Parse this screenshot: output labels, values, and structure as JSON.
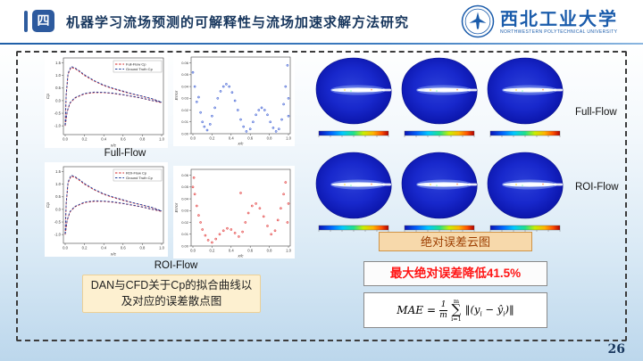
{
  "header": {
    "badge": "四",
    "title": "机器学习流场预测的可解释性与流场加速求解方法研究",
    "logo_cn": "西北工业大学",
    "logo_en": "NORTHWESTERN POLYTECHNICAL UNIVERSITY"
  },
  "page_number": "26",
  "left_panel": {
    "full_flow_label": "Full-Flow",
    "roi_flow_label": "ROI-Flow",
    "caption": "DAN与CFD关于Cp的拟合曲线以及对应的误差散点图"
  },
  "right_panel": {
    "full_flow_label": "Full-Flow",
    "roi_flow_label": "ROI-Flow",
    "error_cloud_label": "绝对误差云图",
    "improvement_text": "最大绝对误差降低41.5%",
    "formula": {
      "lhs": "MAE",
      "eq": "=",
      "num": "1",
      "den": "m",
      "sigma": "∑",
      "sup": "m",
      "sub": "i=1",
      "open": "‖(",
      "y1": "y",
      "i1": "i",
      "minus": "−",
      "y2": "ŷ",
      "i2": "i",
      "close": ")‖"
    }
  },
  "chart_data": {
    "cp_full": {
      "type": "line",
      "xlabel": "x/c",
      "ylabel": "Cp",
      "x_ticks": [
        0,
        0.2,
        0.4,
        0.6,
        0.8,
        1
      ],
      "y_ticks": [
        1.5,
        1.0,
        0.5,
        0.0,
        -0.5,
        -1.0
      ],
      "series": [
        {
          "name": "Full-Flow Cp",
          "color": "#d02020",
          "upper": [
            [
              0,
              -1.0
            ],
            [
              0.01,
              0.2
            ],
            [
              0.03,
              1.05
            ],
            [
              0.06,
              1.32
            ],
            [
              0.1,
              1.28
            ],
            [
              0.15,
              1.15
            ],
            [
              0.2,
              1.0
            ],
            [
              0.3,
              0.78
            ],
            [
              0.4,
              0.6
            ],
            [
              0.5,
              0.47
            ],
            [
              0.6,
              0.36
            ],
            [
              0.7,
              0.26
            ],
            [
              0.8,
              0.17
            ],
            [
              0.9,
              0.07
            ],
            [
              1,
              -0.08
            ]
          ],
          "lower": [
            [
              0,
              -1.0
            ],
            [
              0.02,
              -0.45
            ],
            [
              0.05,
              -0.1
            ],
            [
              0.1,
              0.1
            ],
            [
              0.2,
              0.27
            ],
            [
              0.3,
              0.32
            ],
            [
              0.4,
              0.32
            ],
            [
              0.5,
              0.28
            ],
            [
              0.6,
              0.23
            ],
            [
              0.7,
              0.16
            ],
            [
              0.8,
              0.09
            ],
            [
              0.9,
              0.0
            ],
            [
              1,
              -0.08
            ]
          ]
        },
        {
          "name": "Ground Truth Cp",
          "color": "#1f3d99",
          "upper": [
            [
              0,
              -0.97
            ],
            [
              0.01,
              0.25
            ],
            [
              0.03,
              1.09
            ],
            [
              0.06,
              1.36
            ],
            [
              0.1,
              1.31
            ],
            [
              0.15,
              1.18
            ],
            [
              0.2,
              1.03
            ],
            [
              0.3,
              0.8
            ],
            [
              0.4,
              0.62
            ],
            [
              0.5,
              0.49
            ],
            [
              0.6,
              0.38
            ],
            [
              0.7,
              0.27
            ],
            [
              0.8,
              0.18
            ],
            [
              0.9,
              0.08
            ],
            [
              1,
              -0.06
            ]
          ],
          "lower": [
            [
              0,
              -0.97
            ],
            [
              0.02,
              -0.42
            ],
            [
              0.05,
              -0.08
            ],
            [
              0.1,
              0.12
            ],
            [
              0.2,
              0.29
            ],
            [
              0.3,
              0.34
            ],
            [
              0.4,
              0.33
            ],
            [
              0.5,
              0.3
            ],
            [
              0.6,
              0.24
            ],
            [
              0.7,
              0.17
            ],
            [
              0.8,
              0.1
            ],
            [
              0.9,
              0.01
            ],
            [
              1,
              -0.06
            ]
          ]
        }
      ]
    },
    "err_full": {
      "type": "scatter",
      "xlabel": "x/c",
      "ylabel": "Error",
      "color": "#2a4fd0",
      "x_ticks": [
        0,
        0.2,
        0.4,
        0.6,
        0.8,
        1
      ],
      "y_ticks": [
        0,
        0.01,
        0.02,
        0.03,
        0.04,
        0.05,
        0.06
      ],
      "y_max": 0.065,
      "points": [
        [
          0,
          0.052
        ],
        [
          0.02,
          0.04
        ],
        [
          0.04,
          0.027
        ],
        [
          0.06,
          0.031
        ],
        [
          0.08,
          0.018
        ],
        [
          0.1,
          0.01
        ],
        [
          0.12,
          0.006
        ],
        [
          0.15,
          0.003
        ],
        [
          0.18,
          0.008
        ],
        [
          0.2,
          0.015
        ],
        [
          0.23,
          0.022
        ],
        [
          0.26,
          0.03
        ],
        [
          0.29,
          0.036
        ],
        [
          0.32,
          0.04
        ],
        [
          0.35,
          0.042
        ],
        [
          0.38,
          0.04
        ],
        [
          0.41,
          0.035
        ],
        [
          0.44,
          0.028
        ],
        [
          0.47,
          0.02
        ],
        [
          0.5,
          0.012
        ],
        [
          0.53,
          0.006
        ],
        [
          0.56,
          0.002
        ],
        [
          0.6,
          0.004
        ],
        [
          0.63,
          0.01
        ],
        [
          0.66,
          0.016
        ],
        [
          0.69,
          0.02
        ],
        [
          0.72,
          0.022
        ],
        [
          0.75,
          0.02
        ],
        [
          0.78,
          0.016
        ],
        [
          0.81,
          0.01
        ],
        [
          0.84,
          0.005
        ],
        [
          0.87,
          0.002
        ],
        [
          0.9,
          0.004
        ],
        [
          0.93,
          0.012
        ],
        [
          0.95,
          0.025
        ],
        [
          0.97,
          0.04
        ],
        [
          0.99,
          0.058
        ],
        [
          1,
          0.03
        ],
        [
          1,
          0.015
        ]
      ]
    },
    "cp_roi": {
      "type": "line",
      "xlabel": "x/c",
      "ylabel": "Cp",
      "x_ticks": [
        0,
        0.2,
        0.4,
        0.6,
        0.8,
        1
      ],
      "y_ticks": [
        1.5,
        1.0,
        0.5,
        0.0,
        -0.5,
        -1.0
      ],
      "series": [
        {
          "name": "ROI-Flow Cp",
          "color": "#d02020",
          "upper": [
            [
              0,
              -1.0
            ],
            [
              0.01,
              0.2
            ],
            [
              0.03,
              1.05
            ],
            [
              0.06,
              1.32
            ],
            [
              0.1,
              1.28
            ],
            [
              0.15,
              1.15
            ],
            [
              0.2,
              1.0
            ],
            [
              0.3,
              0.78
            ],
            [
              0.4,
              0.6
            ],
            [
              0.5,
              0.47
            ],
            [
              0.6,
              0.36
            ],
            [
              0.7,
              0.26
            ],
            [
              0.8,
              0.17
            ],
            [
              0.9,
              0.07
            ],
            [
              1,
              -0.08
            ]
          ],
          "lower": [
            [
              0,
              -1.0
            ],
            [
              0.02,
              -0.45
            ],
            [
              0.05,
              -0.1
            ],
            [
              0.1,
              0.1
            ],
            [
              0.2,
              0.27
            ],
            [
              0.3,
              0.32
            ],
            [
              0.4,
              0.32
            ],
            [
              0.5,
              0.28
            ],
            [
              0.6,
              0.23
            ],
            [
              0.7,
              0.16
            ],
            [
              0.8,
              0.09
            ],
            [
              0.9,
              0.0
            ],
            [
              1,
              -0.08
            ]
          ]
        },
        {
          "name": "Ground Truth Cp",
          "color": "#1f3d99",
          "upper": [
            [
              0,
              -0.97
            ],
            [
              0.01,
              0.25
            ],
            [
              0.03,
              1.09
            ],
            [
              0.06,
              1.36
            ],
            [
              0.1,
              1.31
            ],
            [
              0.15,
              1.18
            ],
            [
              0.2,
              1.03
            ],
            [
              0.3,
              0.8
            ],
            [
              0.4,
              0.62
            ],
            [
              0.5,
              0.49
            ],
            [
              0.6,
              0.38
            ],
            [
              0.7,
              0.27
            ],
            [
              0.8,
              0.18
            ],
            [
              0.9,
              0.08
            ],
            [
              1,
              -0.06
            ]
          ],
          "lower": [
            [
              0,
              -0.97
            ],
            [
              0.02,
              -0.42
            ],
            [
              0.05,
              -0.08
            ],
            [
              0.1,
              0.12
            ],
            [
              0.2,
              0.29
            ],
            [
              0.3,
              0.34
            ],
            [
              0.4,
              0.33
            ],
            [
              0.5,
              0.3
            ],
            [
              0.6,
              0.24
            ],
            [
              0.7,
              0.17
            ],
            [
              0.8,
              0.1
            ],
            [
              0.9,
              0.01
            ],
            [
              1,
              -0.06
            ]
          ]
        }
      ]
    },
    "err_roi": {
      "type": "scatter",
      "xlabel": "x/c",
      "ylabel": "Error",
      "color": "#e02828",
      "x_ticks": [
        0,
        0.2,
        0.4,
        0.6,
        0.8,
        1
      ],
      "y_ticks": [
        0,
        0.01,
        0.02,
        0.03,
        0.04,
        0.05,
        0.06
      ],
      "y_max": 0.065,
      "points": [
        [
          0,
          0.05
        ],
        [
          0.01,
          0.058
        ],
        [
          0.02,
          0.044
        ],
        [
          0.04,
          0.034
        ],
        [
          0.06,
          0.026
        ],
        [
          0.08,
          0.02
        ],
        [
          0.1,
          0.014
        ],
        [
          0.13,
          0.009
        ],
        [
          0.16,
          0.005
        ],
        [
          0.2,
          0.003
        ],
        [
          0.24,
          0.006
        ],
        [
          0.28,
          0.01
        ],
        [
          0.32,
          0.013
        ],
        [
          0.36,
          0.015
        ],
        [
          0.4,
          0.014
        ],
        [
          0.44,
          0.011
        ],
        [
          0.48,
          0.008
        ],
        [
          0.5,
          0.045
        ],
        [
          0.52,
          0.012
        ],
        [
          0.55,
          0.02
        ],
        [
          0.58,
          0.028
        ],
        [
          0.62,
          0.034
        ],
        [
          0.66,
          0.036
        ],
        [
          0.7,
          0.032
        ],
        [
          0.74,
          0.025
        ],
        [
          0.78,
          0.017
        ],
        [
          0.82,
          0.01
        ],
        [
          0.86,
          0.013
        ],
        [
          0.89,
          0.022
        ],
        [
          0.92,
          0.032
        ],
        [
          0.95,
          0.044
        ],
        [
          0.97,
          0.054
        ],
        [
          0.99,
          0.02
        ],
        [
          1,
          0.036
        ]
      ]
    }
  }
}
